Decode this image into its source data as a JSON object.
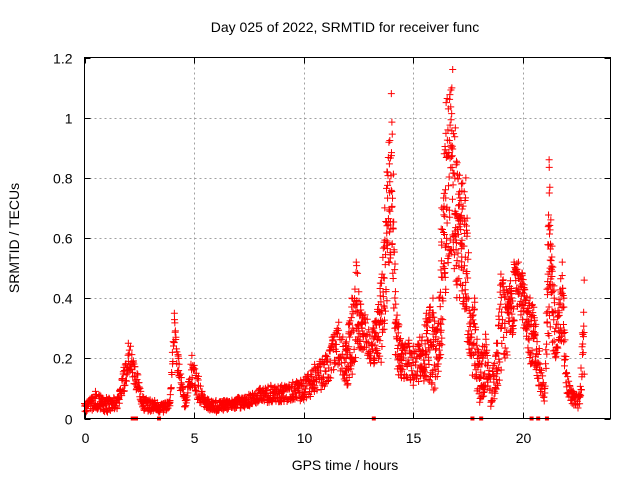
{
  "chart_data": {
    "type": "scatter",
    "title": "Day 025 of 2022, SRMTID for receiver func",
    "xlabel": "GPS time / hours",
    "ylabel": "SRMTID / TECUs",
    "xlim": [
      0,
      24
    ],
    "ylim": [
      0,
      1.2
    ],
    "xticks": [
      0,
      5,
      10,
      15,
      20
    ],
    "xtick_labels": [
      "0",
      "5",
      "10",
      "15",
      "20"
    ],
    "yticks": [
      0,
      0.2,
      0.4,
      0.6,
      0.8,
      1,
      1.2
    ],
    "ytick_labels": [
      "0",
      "0.2",
      "0.4",
      "0.6",
      "0.8",
      "1",
      "1.2"
    ],
    "grid": true,
    "marker_color": "#ff0000",
    "marker": "plus",
    "marker_style": "zero-value points drawn as small squares on x-axis",
    "series": [
      {
        "name": "SRMTID",
        "envelope": [
          [
            0.0,
            0.02,
            0.05
          ],
          [
            0.5,
            0.03,
            0.09
          ],
          [
            1.0,
            0.02,
            0.07
          ],
          [
            1.5,
            0.03,
            0.07
          ],
          [
            1.8,
            0.08,
            0.17
          ],
          [
            2.0,
            0.15,
            0.25
          ],
          [
            2.1,
            0.15,
            0.24
          ],
          [
            2.7,
            0.02,
            0.07
          ],
          [
            3.2,
            0.02,
            0.06
          ],
          [
            3.6,
            0.02,
            0.05
          ],
          [
            3.9,
            0.03,
            0.06
          ],
          [
            4.1,
            0.25,
            0.35
          ],
          [
            4.3,
            0.1,
            0.2
          ],
          [
            4.6,
            0.03,
            0.06
          ],
          [
            4.9,
            0.1,
            0.21
          ],
          [
            5.2,
            0.05,
            0.14
          ],
          [
            5.5,
            0.03,
            0.07
          ],
          [
            6.0,
            0.02,
            0.06
          ],
          [
            6.5,
            0.03,
            0.06
          ],
          [
            7.0,
            0.03,
            0.07
          ],
          [
            7.5,
            0.04,
            0.08
          ],
          [
            8.0,
            0.05,
            0.1
          ],
          [
            8.5,
            0.05,
            0.11
          ],
          [
            9.0,
            0.05,
            0.11
          ],
          [
            9.5,
            0.06,
            0.12
          ],
          [
            10.0,
            0.05,
            0.13
          ],
          [
            10.5,
            0.08,
            0.18
          ],
          [
            11.0,
            0.1,
            0.21
          ],
          [
            11.3,
            0.14,
            0.27
          ],
          [
            11.6,
            0.18,
            0.32
          ],
          [
            11.9,
            0.1,
            0.25
          ],
          [
            12.2,
            0.12,
            0.4
          ],
          [
            12.4,
            0.2,
            0.52
          ],
          [
            12.6,
            0.22,
            0.38
          ],
          [
            12.9,
            0.2,
            0.33
          ],
          [
            13.2,
            0.15,
            0.3
          ],
          [
            13.5,
            0.15,
            0.45
          ],
          [
            13.7,
            0.3,
            0.7
          ],
          [
            13.8,
            0.4,
            0.82
          ],
          [
            14.0,
            0.55,
            1.08
          ],
          [
            14.2,
            0.18,
            0.38
          ],
          [
            14.5,
            0.1,
            0.25
          ],
          [
            14.8,
            0.12,
            0.26
          ],
          [
            15.0,
            0.1,
            0.24
          ],
          [
            15.3,
            0.12,
            0.27
          ],
          [
            15.6,
            0.12,
            0.35
          ],
          [
            15.9,
            0.08,
            0.4
          ],
          [
            16.1,
            0.1,
            0.3
          ],
          [
            16.3,
            0.25,
            0.7
          ],
          [
            16.5,
            0.45,
            1.05
          ],
          [
            16.8,
            0.55,
            1.16
          ],
          [
            17.0,
            0.35,
            0.85
          ],
          [
            17.2,
            0.4,
            0.78
          ],
          [
            17.4,
            0.25,
            0.8
          ],
          [
            17.6,
            0.18,
            0.35
          ],
          [
            17.8,
            0.1,
            0.4
          ],
          [
            18.0,
            0.05,
            0.2
          ],
          [
            18.3,
            0.08,
            0.28
          ],
          [
            18.5,
            0.03,
            0.14
          ],
          [
            18.8,
            0.08,
            0.25
          ],
          [
            19.0,
            0.15,
            0.48
          ],
          [
            19.3,
            0.2,
            0.42
          ],
          [
            19.6,
            0.3,
            0.52
          ],
          [
            19.8,
            0.38,
            0.52
          ],
          [
            20.5,
            0.12,
            0.37
          ],
          [
            21.0,
            0.05,
            0.1
          ],
          [
            21.2,
            0.3,
            0.86
          ],
          [
            21.5,
            0.18,
            0.3
          ],
          [
            21.8,
            0.25,
            0.52
          ],
          [
            22.0,
            0.08,
            0.15
          ],
          [
            22.3,
            0.04,
            0.09
          ],
          [
            22.6,
            0.03,
            0.08
          ],
          [
            22.8,
            0.15,
            0.46
          ]
        ],
        "zero_points_x": [
          2.2,
          2.35,
          3.4,
          13.2,
          17.7,
          18.1,
          20.4,
          20.7,
          21.1
        ]
      }
    ]
  }
}
